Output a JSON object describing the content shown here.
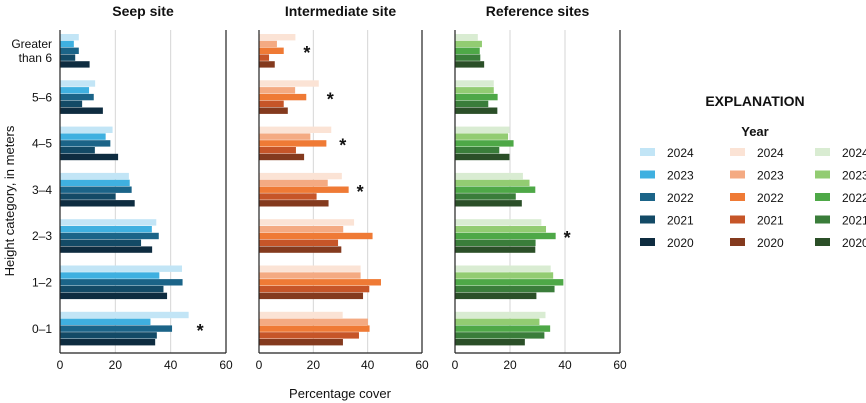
{
  "chart_data": [
    {
      "type": "bar",
      "orientation": "horizontal",
      "title": "Seep site",
      "categories": [
        "Greater than 6",
        "5–6",
        "4–5",
        "3–4",
        "2–3",
        "1–2",
        "0–1"
      ],
      "xlim": [
        0,
        60
      ],
      "xticks": [
        0,
        20,
        40,
        60
      ],
      "grid": true,
      "series": [
        {
          "name": "2024",
          "color": "#c2e5f6",
          "values": [
            6.8,
            12.7,
            19.0,
            24.9,
            34.8,
            44.1,
            46.5
          ]
        },
        {
          "name": "2023",
          "color": "#3fb0e0",
          "values": [
            5.0,
            10.5,
            16.5,
            25.2,
            33.2,
            35.9,
            32.7
          ]
        },
        {
          "name": "2022",
          "color": "#1b6488",
          "values": [
            6.8,
            12.2,
            18.2,
            25.9,
            35.7,
            44.3,
            40.5
          ]
        },
        {
          "name": "2021",
          "color": "#134a66",
          "values": [
            5.5,
            8.0,
            12.6,
            20.1,
            29.3,
            37.4,
            35.0
          ]
        },
        {
          "name": "2020",
          "color": "#0e2c40",
          "values": [
            10.7,
            15.5,
            21.0,
            27.0,
            33.3,
            38.7,
            34.4
          ]
        }
      ],
      "asterisks": [
        "0–1"
      ]
    },
    {
      "type": "bar",
      "orientation": "horizontal",
      "title": "Intermediate site",
      "categories": [
        "Greater than 6",
        "5–6",
        "4–5",
        "3–4",
        "2–3",
        "1–2",
        "0–1"
      ],
      "xlim": [
        0,
        60
      ],
      "xticks": [
        0,
        20,
        40,
        60
      ],
      "grid": true,
      "series": [
        {
          "name": "2024",
          "color": "#fbe3d5",
          "values": [
            13.4,
            22.0,
            26.6,
            30.5,
            35.0,
            37.4,
            30.8
          ]
        },
        {
          "name": "2023",
          "color": "#f4aa82",
          "values": [
            6.6,
            13.3,
            18.9,
            25.3,
            31.0,
            37.4,
            40.1
          ]
        },
        {
          "name": "2022",
          "color": "#ef7a35",
          "values": [
            9.1,
            17.4,
            24.8,
            33.0,
            41.8,
            44.9,
            40.7
          ]
        },
        {
          "name": "2021",
          "color": "#c65528",
          "values": [
            3.7,
            9.1,
            13.6,
            21.2,
            29.1,
            40.6,
            36.8
          ]
        },
        {
          "name": "2020",
          "color": "#843a1e",
          "values": [
            5.8,
            10.6,
            16.6,
            25.6,
            30.3,
            38.3,
            30.9
          ]
        }
      ],
      "asterisks": [
        "Greater than 6",
        "5–6",
        "4–5",
        "3–4"
      ]
    },
    {
      "type": "bar",
      "orientation": "horizontal",
      "title": "Reference sites",
      "categories": [
        "Greater than 6",
        "5–6",
        "4–5",
        "3–4",
        "2–3",
        "1–2",
        "0–1"
      ],
      "xlim": [
        0,
        60
      ],
      "xticks": [
        0,
        20,
        40,
        60
      ],
      "grid": true,
      "series": [
        {
          "name": "2024",
          "color": "#d9ecd2",
          "values": [
            8.3,
            14.1,
            19.8,
            24.7,
            31.4,
            34.8,
            32.9
          ]
        },
        {
          "name": "2023",
          "color": "#92cc72",
          "values": [
            9.8,
            14.1,
            19.3,
            27.1,
            33.1,
            35.7,
            30.7
          ]
        },
        {
          "name": "2022",
          "color": "#4ea847",
          "values": [
            9.0,
            15.5,
            21.3,
            29.2,
            36.6,
            39.4,
            34.6
          ]
        },
        {
          "name": "2021",
          "color": "#3a7d3a",
          "values": [
            9.2,
            12.1,
            16.1,
            22.1,
            29.3,
            36.2,
            32.5
          ]
        },
        {
          "name": "2020",
          "color": "#2b4f28",
          "values": [
            10.6,
            15.4,
            19.8,
            24.3,
            29.2,
            29.6,
            25.4
          ]
        }
      ],
      "asterisks": [
        "2–3"
      ]
    }
  ],
  "ylabel": "Height category, in meters",
  "xlabel": "Percentage cover",
  "asterisk_symbol": "*",
  "legend": {
    "title": "EXPLANATION",
    "subtitle": "Year",
    "placement": "right"
  }
}
